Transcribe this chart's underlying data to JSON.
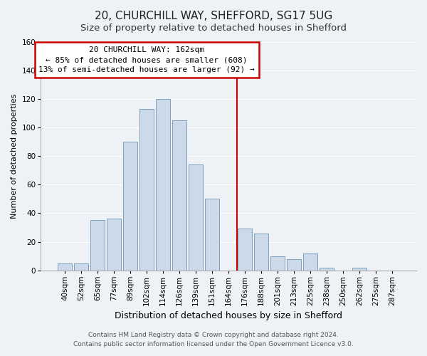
{
  "title": "20, CHURCHILL WAY, SHEFFORD, SG17 5UG",
  "subtitle": "Size of property relative to detached houses in Shefford",
  "xlabel": "Distribution of detached houses by size in Shefford",
  "ylabel": "Number of detached properties",
  "bar_labels": [
    "40sqm",
    "52sqm",
    "65sqm",
    "77sqm",
    "89sqm",
    "102sqm",
    "114sqm",
    "126sqm",
    "139sqm",
    "151sqm",
    "164sqm",
    "176sqm",
    "188sqm",
    "201sqm",
    "213sqm",
    "225sqm",
    "238sqm",
    "250sqm",
    "262sqm",
    "275sqm",
    "287sqm"
  ],
  "bar_heights": [
    5,
    5,
    35,
    36,
    90,
    113,
    120,
    105,
    74,
    50,
    0,
    29,
    26,
    10,
    8,
    12,
    2,
    0,
    2,
    0,
    0
  ],
  "bar_color": "#ccd9e8",
  "bar_edge_color": "#7ba0be",
  "vline_x_index": 10,
  "vline_color": "#cc0000",
  "ylim": [
    0,
    160
  ],
  "yticks": [
    0,
    20,
    40,
    60,
    80,
    100,
    120,
    140,
    160
  ],
  "annotation_title": "20 CHURCHILL WAY: 162sqm",
  "annotation_line1": "← 85% of detached houses are smaller (608)",
  "annotation_line2": "13% of semi-detached houses are larger (92) →",
  "annotation_box_facecolor": "#ffffff",
  "annotation_box_edgecolor": "#cc0000",
  "footer1": "Contains HM Land Registry data © Crown copyright and database right 2024.",
  "footer2": "Contains public sector information licensed under the Open Government Licence v3.0.",
  "title_fontsize": 11,
  "subtitle_fontsize": 9.5,
  "xlabel_fontsize": 9,
  "ylabel_fontsize": 8,
  "tick_fontsize": 7.5,
  "annotation_fontsize": 8,
  "footer_fontsize": 6.5,
  "background_color": "#eef2f7",
  "grid_color": "#ffffff",
  "spine_color": "#aaaaaa"
}
